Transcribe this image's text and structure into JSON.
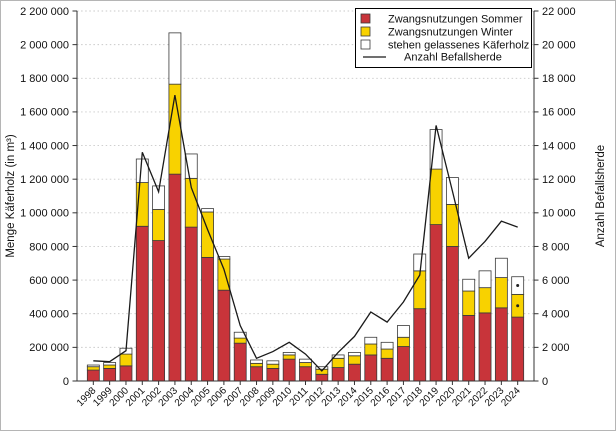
{
  "figure": {
    "background": "#ffffff",
    "border_color": "#b5b5b5",
    "axis_color": "#333333",
    "grid_color": "#c9c9c9"
  },
  "chart_data": {
    "type": "bar",
    "subtype": "stacked-bars-with-line-dual-axis",
    "title": "",
    "categories": [
      "1998",
      "1999",
      "2000",
      "2001",
      "2002",
      "2003",
      "2004",
      "2005",
      "2006",
      "2007",
      "2008",
      "2009",
      "2010",
      "2011",
      "2012",
      "2013",
      "2014",
      "2015",
      "2016",
      "2017",
      "2018",
      "2019",
      "2020",
      "2021",
      "2022",
      "2023",
      "2024"
    ],
    "series": [
      {
        "name": "Zwangsnutzungen Sommer",
        "type": "bar",
        "stack": "kaeferholz",
        "axis": "left",
        "color": "#c8343a",
        "values": [
          65000,
          75000,
          90000,
          920000,
          835000,
          1230000,
          915000,
          735000,
          540000,
          225000,
          85000,
          75000,
          130000,
          85000,
          40000,
          80000,
          100000,
          155000,
          135000,
          205000,
          430000,
          930000,
          800000,
          390000,
          405000,
          435000,
          380000
        ]
      },
      {
        "name": "Zwangsnutzungen Winter",
        "type": "bar",
        "stack": "kaeferholz",
        "axis": "left",
        "color": "#f8d200",
        "values": [
          20000,
          20000,
          70000,
          260000,
          185000,
          535000,
          290000,
          270000,
          185000,
          30000,
          20000,
          25000,
          25000,
          25000,
          30000,
          55000,
          50000,
          65000,
          55000,
          55000,
          225000,
          330000,
          250000,
          145000,
          150000,
          180000,
          135000
        ]
      },
      {
        "name": "stehen gelassenes Käferholz",
        "type": "bar",
        "stack": "kaeferholz",
        "axis": "left",
        "color": "#ffffff",
        "values": [
          10000,
          15000,
          35000,
          140000,
          140000,
          305000,
          145000,
          20000,
          15000,
          35000,
          20000,
          20000,
          15000,
          20000,
          15000,
          20000,
          20000,
          40000,
          40000,
          70000,
          100000,
          235000,
          160000,
          70000,
          100000,
          115000,
          105000
        ]
      },
      {
        "name": "Anzahl Befallsherde",
        "type": "line",
        "axis": "right",
        "color": "#1a1a1a",
        "values": [
          1200,
          1150,
          1800,
          13600,
          11250,
          17000,
          11500,
          9000,
          6650,
          3300,
          1350,
          1750,
          2300,
          1600,
          600,
          1700,
          2650,
          4100,
          3500,
          4700,
          6300,
          15200,
          11300,
          7300,
          8300,
          9500,
          9150
        ]
      }
    ],
    "y_left": {
      "label": "Menge Käferholz (in m³)",
      "min": 0,
      "max": 2200000,
      "tick_step": 200000,
      "tick_labels": [
        "0",
        "200 000",
        "400 000",
        "600 000",
        "800 000",
        "1 000 000",
        "1 200 000",
        "1 400 000",
        "1 600 000",
        "1 800 000",
        "2 000 000",
        "2 200 000"
      ]
    },
    "y_right": {
      "label": "Anzahl Befallsherde",
      "min": 0,
      "max": 22000,
      "tick_step": 2000,
      "tick_labels": [
        "0",
        "2 000",
        "4 000",
        "6 000",
        "8 000",
        "10 000",
        "12 000",
        "14 000",
        "16 000",
        "18 000",
        "20 000",
        "22 000"
      ]
    },
    "grid": "horizontal dotted at every left-axis tick",
    "legend_position": "inside top-right",
    "x_tick_label_rotation": 45,
    "footnote_markers": {
      "year": "2024",
      "marker": "dot",
      "segments": [
        "Zwangsnutzungen Winter",
        "stehen gelassenes Käferholz"
      ]
    }
  },
  "legend": {
    "entries": [
      {
        "label": "Zwangsnutzungen Sommer",
        "swatch": "square",
        "color": "#c8343a"
      },
      {
        "label": "Zwangsnutzungen Winter",
        "swatch": "square",
        "color": "#f8d200"
      },
      {
        "label": "stehen gelassenes Käferholz",
        "swatch": "square",
        "color": "#ffffff"
      },
      {
        "label": "Anzahl Befallsherde",
        "swatch": "line",
        "color": "#1a1a1a"
      }
    ]
  }
}
